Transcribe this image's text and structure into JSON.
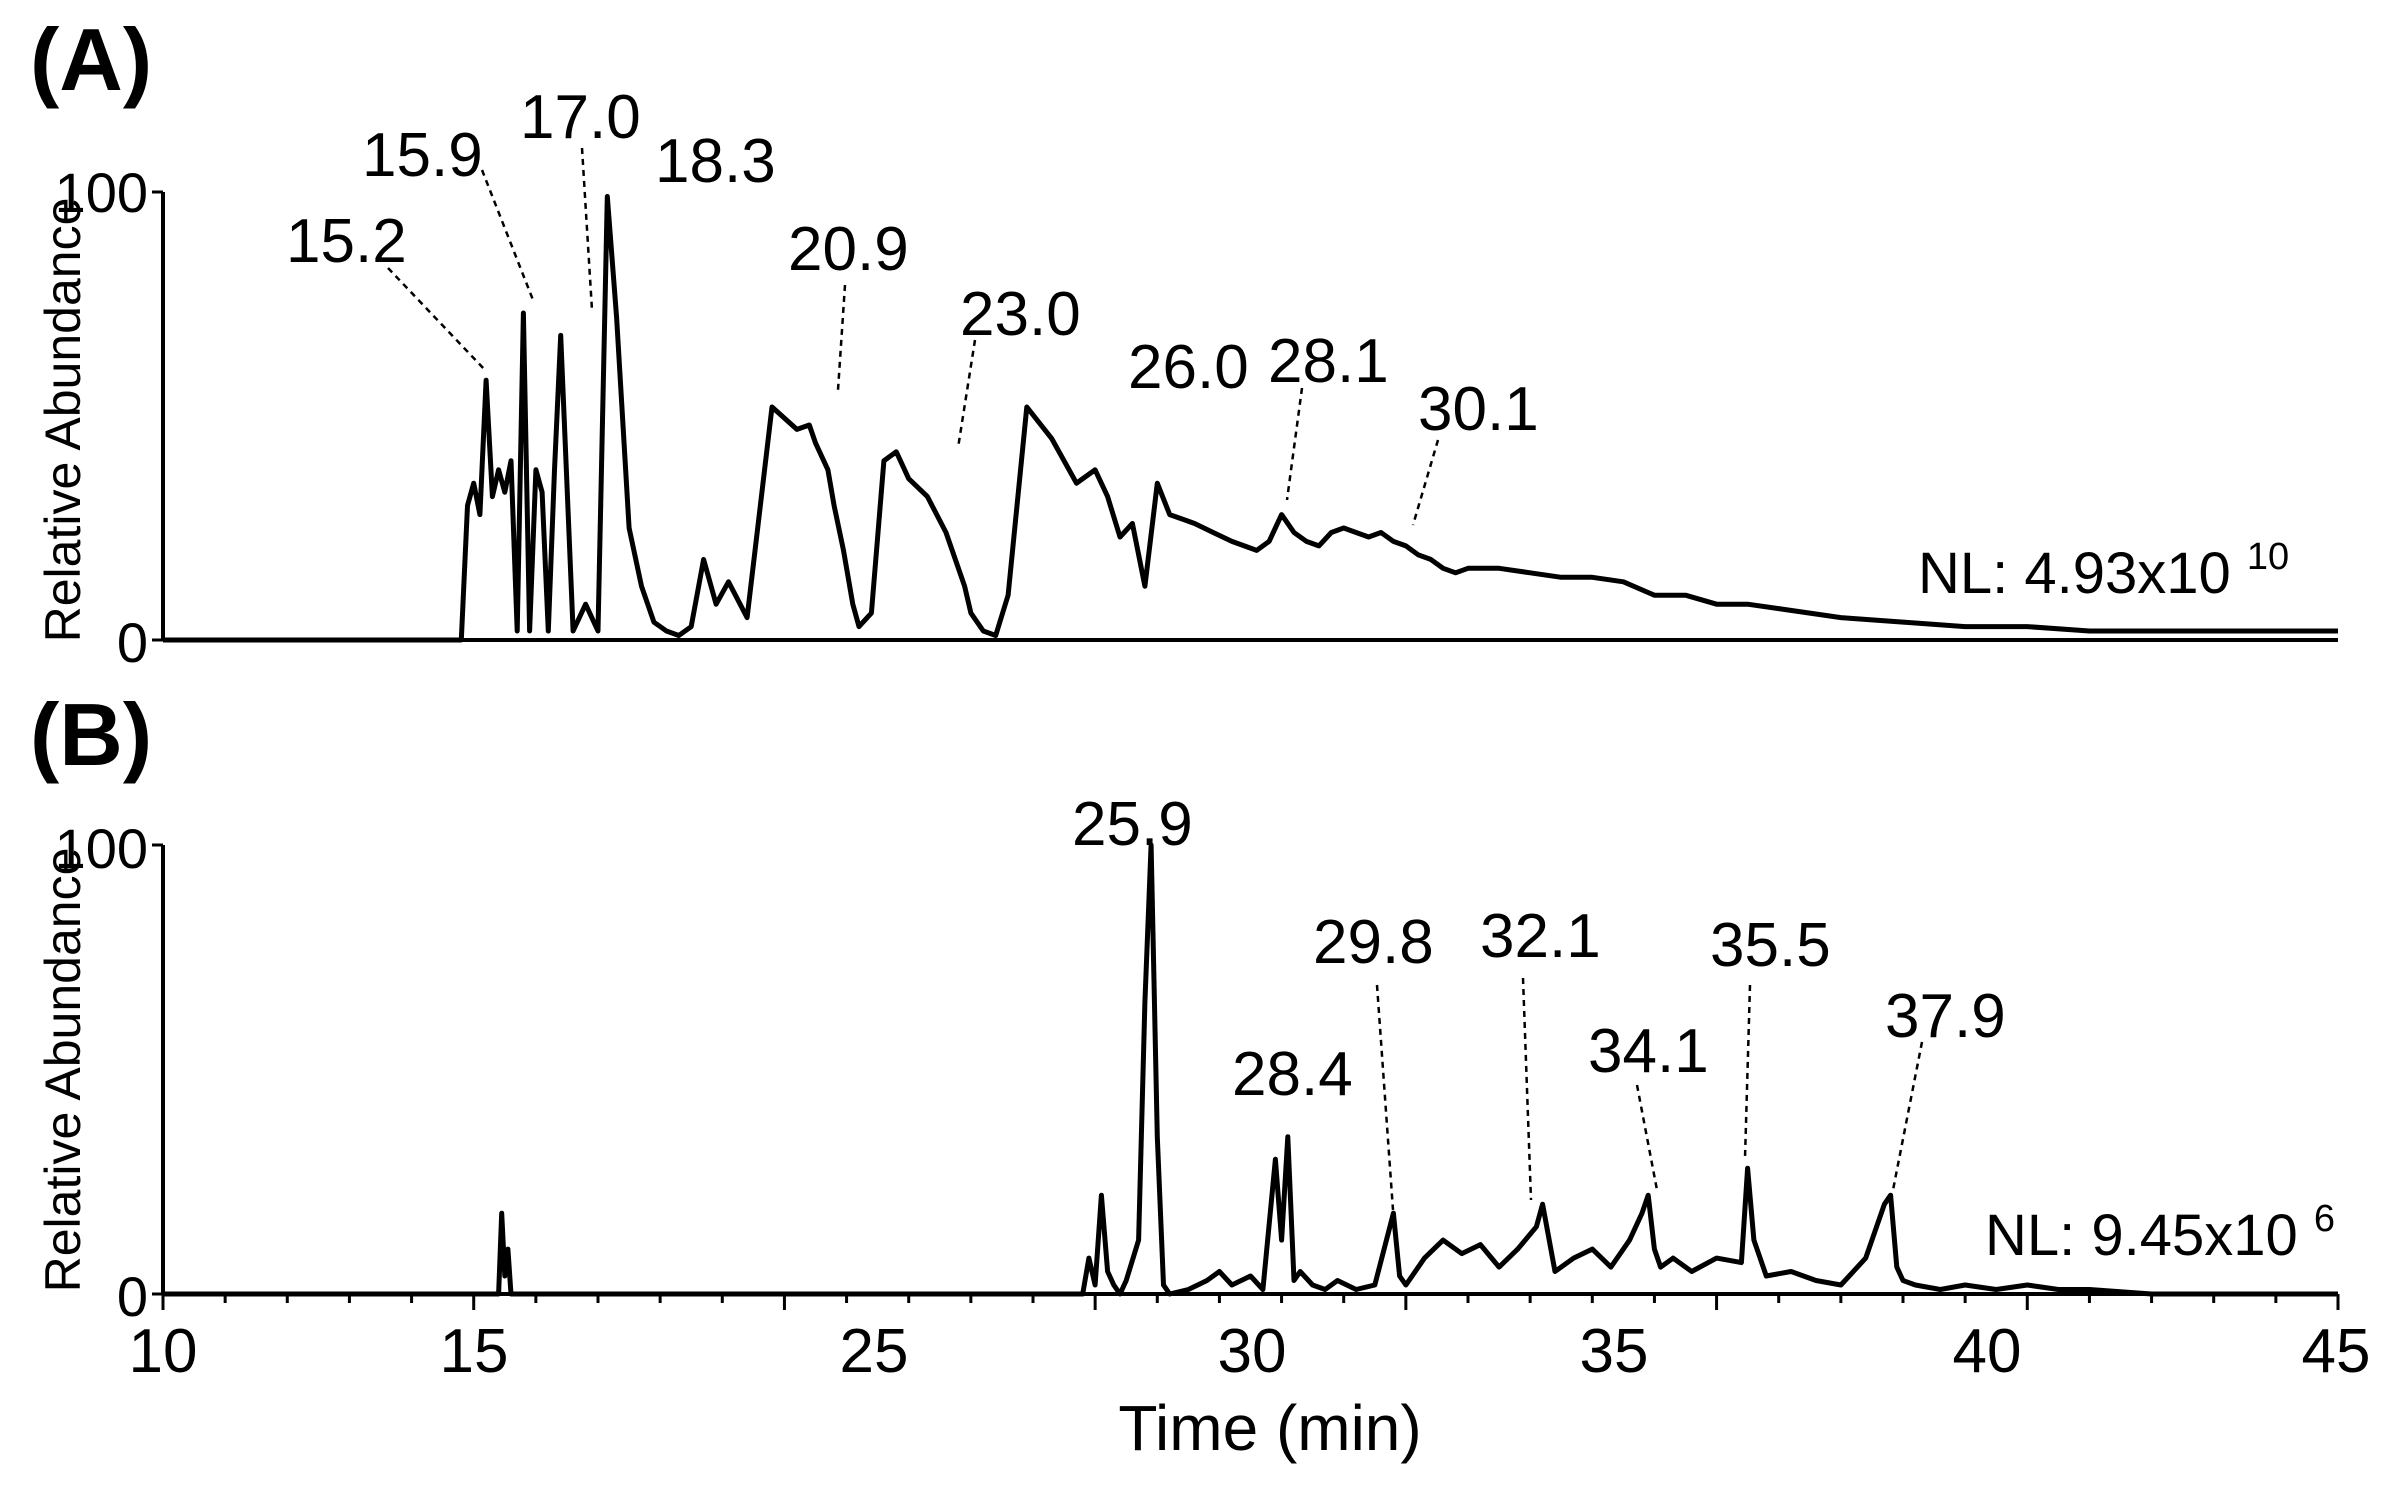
{
  "figure": {
    "xlabel": "Time (min)",
    "x_ticks": [
      "10",
      "15",
      "25",
      "30",
      "35",
      "40",
      "45"
    ]
  },
  "chart_data": [
    {
      "type": "line",
      "panel": "(A)",
      "title": "",
      "ylabel": "Relative Abundance",
      "xlabel": "Time (min)",
      "xlim": [
        10,
        45
      ],
      "ylim": [
        0,
        100
      ],
      "y_ticks": [
        "0",
        "100"
      ],
      "normalization": "NL: 4.93x10",
      "normalization_exp": "10",
      "peak_labels": [
        "15.2",
        "15.9",
        "17.0",
        "18.3",
        "20.9",
        "23.0",
        "26.0",
        "28.1",
        "30.1"
      ],
      "x": [
        10,
        14.8,
        14.9,
        15.0,
        15.1,
        15.2,
        15.3,
        15.4,
        15.5,
        15.6,
        15.7,
        15.8,
        15.9,
        16.0,
        16.1,
        16.2,
        16.3,
        16.4,
        16.6,
        16.8,
        17.0,
        17.15,
        17.3,
        17.5,
        17.7,
        17.9,
        18.1,
        18.3,
        18.5,
        18.7,
        18.9,
        19.1,
        19.4,
        19.8,
        20.2,
        20.4,
        20.5,
        20.7,
        20.8,
        20.95,
        21.1,
        21.2,
        21.4,
        21.6,
        21.8,
        22.0,
        22.3,
        22.6,
        22.9,
        23.0,
        23.2,
        23.4,
        23.6,
        23.9,
        24.3,
        24.7,
        25.0,
        25.2,
        25.4,
        25.6,
        25.8,
        26.0,
        26.2,
        26.4,
        26.6,
        26.9,
        27.2,
        27.4,
        27.6,
        27.8,
        28.0,
        28.2,
        28.4,
        28.6,
        28.8,
        29.0,
        29.2,
        29.4,
        29.6,
        29.8,
        30.0,
        30.2,
        30.4,
        30.6,
        30.8,
        31.0,
        31.5,
        32.0,
        32.5,
        33.0,
        33.5,
        34.0,
        34.5,
        35.0,
        35.5,
        36.0,
        36.5,
        37.0,
        38.0,
        39.0,
        40.0,
        41.0,
        42.0,
        43.0,
        44.0,
        45.0
      ],
      "y": [
        0,
        0,
        30,
        35,
        28,
        58,
        32,
        38,
        33,
        40,
        2,
        73,
        2,
        38,
        33,
        2,
        38,
        68,
        2,
        8,
        2,
        99,
        72,
        25,
        12,
        4,
        2,
        1,
        3,
        18,
        8,
        13,
        5,
        52,
        47,
        48,
        44,
        38,
        30,
        20,
        8,
        3,
        6,
        40,
        42,
        36,
        32,
        24,
        12,
        6,
        2,
        1,
        10,
        52,
        45,
        35,
        38,
        32,
        23,
        26,
        12,
        35,
        28,
        27,
        26,
        24,
        22,
        21,
        20,
        22,
        28,
        24,
        22,
        21,
        24,
        25,
        24,
        23,
        24,
        22,
        21,
        19,
        18,
        16,
        15,
        16,
        16,
        15,
        14,
        14,
        13,
        10,
        10,
        8,
        8,
        7,
        6,
        5,
        4,
        3,
        3,
        2,
        2,
        2,
        2,
        2
      ]
    },
    {
      "type": "line",
      "panel": "(B)",
      "title": "",
      "ylabel": "Relative Abundance",
      "xlabel": "Time (min)",
      "xlim": [
        10,
        45
      ],
      "ylim": [
        0,
        100
      ],
      "y_ticks": [
        "0",
        "100"
      ],
      "normalization": "NL: 9.45x10",
      "normalization_exp": "6",
      "peak_labels": [
        "25.9",
        "28.4",
        "29.8",
        "32.1",
        "34.1",
        "35.5",
        "37.9"
      ],
      "x": [
        10,
        15.4,
        15.45,
        15.5,
        15.55,
        15.6,
        24.8,
        24.9,
        25.0,
        25.1,
        25.2,
        25.3,
        25.4,
        25.5,
        25.7,
        25.8,
        25.9,
        26.0,
        26.1,
        26.2,
        26.5,
        26.8,
        27.0,
        27.2,
        27.5,
        27.7,
        27.9,
        28.0,
        28.1,
        28.2,
        28.3,
        28.5,
        28.7,
        28.9,
        29.2,
        29.5,
        29.8,
        29.9,
        30.0,
        30.3,
        30.6,
        30.9,
        31.2,
        31.5,
        31.8,
        32.1,
        32.2,
        32.4,
        32.7,
        33.0,
        33.3,
        33.6,
        33.8,
        33.9,
        34.0,
        34.1,
        34.3,
        34.6,
        35.0,
        35.4,
        35.5,
        35.6,
        35.8,
        36.2,
        36.6,
        37.0,
        37.4,
        37.7,
        37.8,
        37.9,
        38.0,
        38.2,
        38.6,
        39.0,
        39.5,
        40.0,
        40.5,
        41.0,
        42.0,
        43.0,
        44.0,
        45.0
      ],
      "y": [
        0,
        0,
        18,
        4,
        10,
        0,
        0,
        8,
        2,
        22,
        5,
        2,
        0,
        3,
        12,
        65,
        100,
        35,
        2,
        0,
        1,
        3,
        5,
        2,
        4,
        1,
        30,
        12,
        35,
        3,
        5,
        2,
        1,
        3,
        1,
        2,
        18,
        4,
        2,
        8,
        12,
        9,
        11,
        6,
        10,
        15,
        20,
        5,
        8,
        10,
        6,
        12,
        18,
        22,
        10,
        6,
        8,
        5,
        8,
        7,
        28,
        12,
        4,
        5,
        3,
        2,
        8,
        20,
        22,
        6,
        3,
        2,
        1,
        2,
        1,
        2,
        1,
        1,
        0,
        0,
        0,
        0
      ]
    }
  ]
}
